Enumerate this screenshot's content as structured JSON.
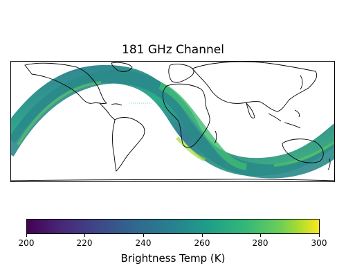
{
  "title": "181 GHz Channel",
  "colorbar": {
    "label": "Brightness Temp (K)",
    "min": 200,
    "max": 300,
    "ticks": [
      "200",
      "220",
      "240",
      "260",
      "280",
      "300"
    ],
    "colormap": "viridis",
    "colors": [
      "#440154",
      "#3b528b",
      "#21918c",
      "#5ec962",
      "#fde725"
    ]
  },
  "map": {
    "projection": "plate-carree",
    "features": [
      "coastlines",
      "satellite-swath"
    ],
    "swath_dominant_color": "#21918c"
  }
}
